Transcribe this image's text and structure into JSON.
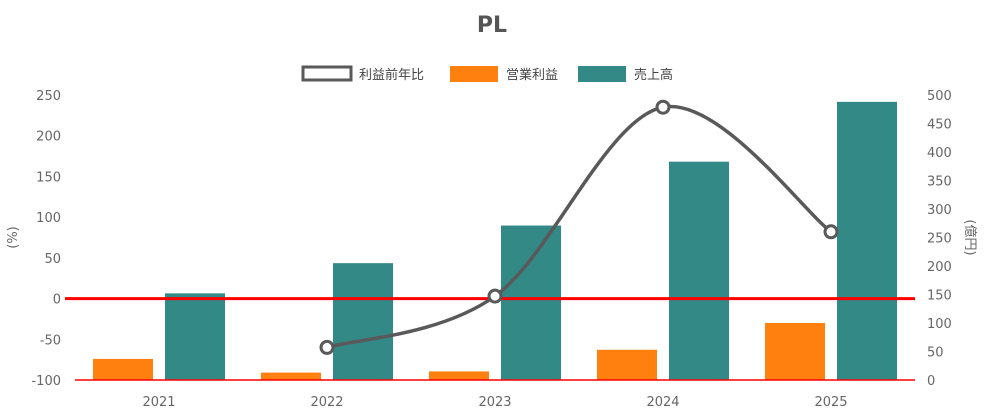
{
  "chart_data": {
    "type": "bar",
    "title": "PL",
    "categories": [
      "2021",
      "2022",
      "2023",
      "2024",
      "2025"
    ],
    "series": [
      {
        "name": "利益前年比",
        "kind": "line",
        "axis": "left",
        "color": "#595959",
        "values": [
          null,
          -60,
          3,
          235,
          82
        ]
      },
      {
        "name": "営業利益",
        "kind": "bar",
        "axis": "right",
        "color": "#FF800E",
        "values": [
          37,
          13,
          15,
          53,
          100
        ]
      },
      {
        "name": "売上高",
        "kind": "bar",
        "axis": "right",
        "color": "#338985",
        "values": [
          152,
          205,
          271,
          383,
          488
        ]
      }
    ],
    "left_axis": {
      "label": "(%)",
      "min": -100,
      "max": 250,
      "ticks": [
        "250",
        "200",
        "150",
        "100",
        "50",
        "0",
        "-50",
        "-100"
      ]
    },
    "right_axis": {
      "label": "(億円)",
      "min": 0,
      "max": 500,
      "ticks": [
        "500",
        "450",
        "400",
        "350",
        "300",
        "250",
        "200",
        "150",
        "100",
        "50",
        "0"
      ]
    },
    "zero_line_color": "#FF0000",
    "legend_position": "top-center",
    "grid": false
  }
}
